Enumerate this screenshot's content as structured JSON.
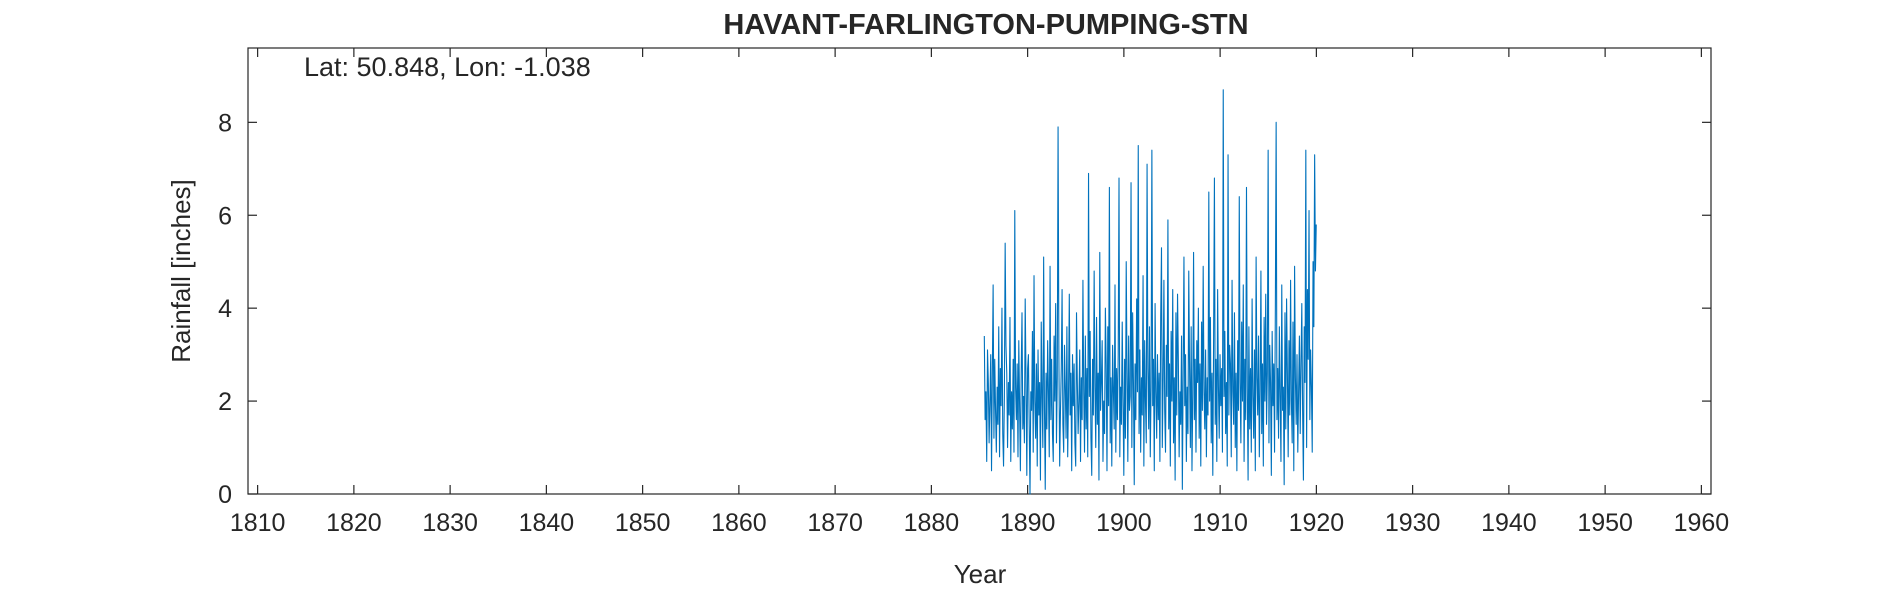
{
  "chart_data": {
    "type": "line",
    "title": "HAVANT-FARLINGTON-PUMPING-STN",
    "annotation": "Lat: 50.848, Lon: -1.038",
    "xlabel": "Year",
    "ylabel": "Rainfall [inches]",
    "xlim": [
      1809,
      1961
    ],
    "ylim": [
      0,
      9.6
    ],
    "xticks": [
      1810,
      1820,
      1830,
      1840,
      1850,
      1860,
      1870,
      1880,
      1890,
      1900,
      1910,
      1920,
      1930,
      1940,
      1950,
      1960
    ],
    "yticks": [
      0,
      2,
      4,
      6,
      8
    ],
    "grid": false,
    "colors": {
      "series": "#0072BD",
      "flagged": "#EDB120",
      "axis": "#262626"
    },
    "series": [
      {
        "x_start": 1885.5,
        "x_step": 0.0833,
        "values": [
          3.4,
          1.6,
          2.2,
          0.7,
          3.1,
          2.4,
          1.1,
          2.0,
          3.0,
          0.5,
          2.6,
          4.5,
          1.2,
          2.9,
          1.8,
          0.9,
          2.3,
          1.5,
          3.6,
          0.8,
          2.7,
          1.9,
          4.0,
          1.3,
          0.6,
          2.1,
          5.4,
          3.2,
          2.6,
          1.0,
          2.4,
          1.7,
          3.8,
          0.7,
          2.2,
          1.4,
          2.9,
          0.9,
          6.1,
          2.3,
          1.6,
          2.8,
          0.8,
          3.3,
          1.9,
          0.5,
          2.6,
          3.9,
          1.4,
          2.1,
          1.1,
          4.2,
          2.5,
          0.4,
          2.7,
          3.0,
          1.5,
          0.0,
          2.2,
          1.8,
          3.5,
          0.9,
          4.7,
          2.0,
          1.2,
          2.8,
          0.6,
          3.1,
          1.7,
          2.4,
          0.3,
          3.7,
          2.1,
          1.0,
          5.1,
          1.9,
          0.1,
          2.6,
          1.4,
          3.3,
          2.2,
          0.8,
          4.9,
          1.6,
          2.9,
          1.3,
          0.7,
          3.4,
          2.0,
          4.1,
          1.1,
          2.5,
          7.9,
          3.0,
          0.6,
          1.8,
          2.7,
          4.4,
          1.5,
          0.9,
          3.2,
          2.3,
          1.2,
          3.6,
          0.8,
          2.1,
          4.3,
          1.7,
          2.6,
          0.5,
          3.0,
          1.9,
          2.8,
          1.1,
          0.6,
          3.9,
          2.4,
          1.3,
          2.0,
          3.1,
          0.7,
          2.5,
          1.6,
          4.6,
          2.2,
          0.9,
          3.4,
          1.4,
          2.7,
          0.8,
          6.9,
          2.1,
          3.5,
          1.2,
          0.4,
          2.9,
          1.7,
          4.8,
          2.3,
          1.0,
          3.8,
          1.5,
          2.6,
          0.3,
          5.2,
          1.8,
          2.4,
          3.3,
          0.7,
          2.0,
          1.3,
          4.0,
          2.8,
          0.5,
          3.6,
          1.9,
          6.6,
          1.1,
          2.5,
          0.6,
          3.2,
          2.2,
          1.4,
          4.5,
          0.9,
          2.7,
          1.6,
          3.0,
          6.8,
          0.8,
          2.3,
          1.5,
          3.7,
          2.0,
          0.4,
          2.9,
          1.2,
          5.0,
          2.6,
          0.7,
          3.4,
          1.8,
          2.1,
          6.7,
          1.0,
          3.9,
          2.4,
          0.2,
          2.8,
          1.6,
          4.2,
          2.2,
          7.5,
          1.3,
          3.1,
          0.9,
          2.5,
          1.7,
          4.7,
          0.6,
          3.3,
          2.0,
          1.1,
          7.1,
          2.7,
          1.4,
          3.6,
          0.8,
          2.3,
          7.4,
          1.9,
          2.9,
          0.5,
          4.1,
          2.2,
          1.2,
          3.0,
          1.6,
          2.6,
          0.7,
          3.8,
          5.3,
          1.0,
          2.4,
          4.6,
          1.8,
          0.9,
          3.2,
          2.1,
          5.9,
          1.4,
          2.8,
          0.6,
          3.5,
          2.0,
          4.4,
          1.1,
          2.5,
          0.3,
          3.9,
          1.7,
          4.3,
          2.9,
          0.8,
          2.2,
          1.5,
          3.4,
          0.1,
          2.6,
          5.1,
          1.9,
          3.0,
          0.7,
          2.3,
          1.3,
          4.8,
          2.7,
          1.0,
          3.6,
          0.5,
          2.1,
          5.2,
          1.6,
          2.9,
          0.9,
          3.3,
          2.4,
          4.0,
          1.2,
          2.8,
          0.6,
          3.7,
          1.8,
          4.9,
          2.2,
          1.4,
          3.1,
          0.8,
          2.5,
          1.7,
          6.5,
          2.0,
          3.8,
          1.1,
          2.6,
          0.4,
          3.4,
          6.8,
          1.5,
          2.9,
          0.7,
          4.4,
          2.3,
          1.2,
          3.0,
          1.9,
          2.7,
          0.9,
          8.7,
          2.1,
          3.5,
          1.3,
          2.4,
          0.6,
          7.3,
          1.7,
          3.2,
          2.8,
          0.8,
          4.6,
          2.2,
          1.5,
          3.9,
          1.0,
          2.6,
          0.5,
          3.3,
          1.8,
          6.4,
          2.4,
          1.1,
          3.7,
          2.0,
          4.5,
          0.7,
          2.9,
          1.6,
          6.6,
          2.3,
          0.3,
          3.6,
          1.4,
          2.7,
          0.9,
          4.2,
          2.1,
          1.2,
          3.1,
          0.5,
          5.1,
          2.5,
          1.7,
          3.4,
          0.8,
          2.2,
          4.8,
          1.3,
          2.8,
          0.6,
          3.8,
          2.0,
          4.3,
          1.5,
          2.6,
          7.4,
          1.1,
          3.2,
          2.4,
          0.4,
          3.5,
          1.9,
          2.8,
          0.9,
          4.0,
          8.0,
          1.6,
          2.7,
          1.2,
          3.6,
          2.1,
          0.7,
          4.5,
          1.8,
          2.3,
          0.2,
          3.9,
          1.4,
          4.2,
          2.6,
          0.8,
          3.3,
          1.7,
          4.6,
          2.0,
          1.1,
          3.7,
          0.5,
          4.9,
          2.5,
          1.5,
          3.0,
          0.9,
          2.2,
          3.4,
          1.3,
          2.8,
          4.1,
          1.8,
          0.3,
          3.6,
          2.4,
          7.4,
          1.0,
          4.4,
          2.9,
          6.1,
          1.6,
          3.1,
          2.3,
          0.9,
          5.0,
          3.6,
          7.3,
          4.8,
          5.8
        ]
      }
    ]
  }
}
